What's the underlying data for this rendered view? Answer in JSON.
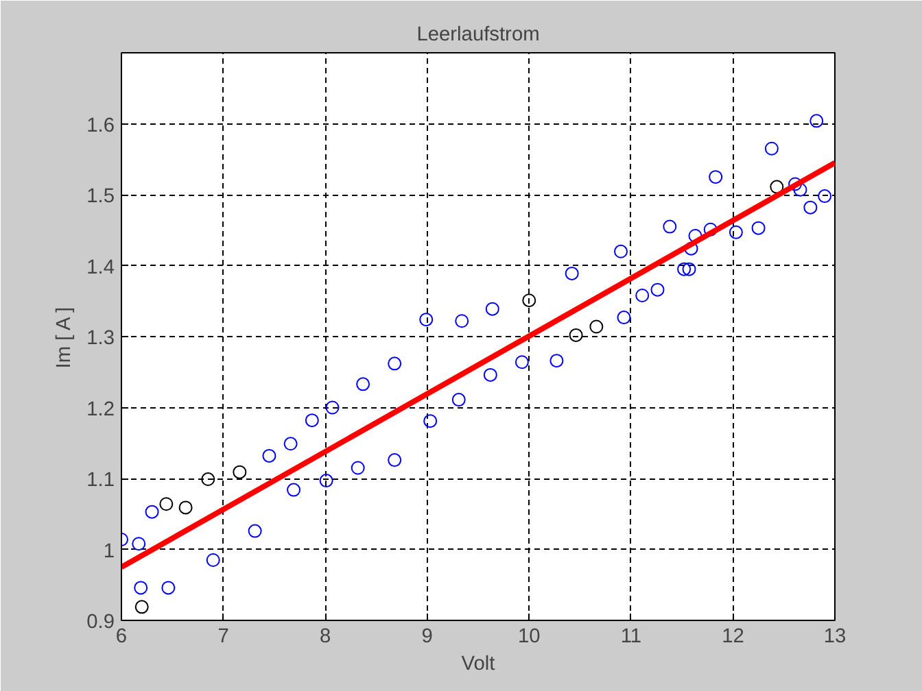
{
  "chart_data": {
    "type": "scatter",
    "title": "Leerlaufstrom",
    "xlabel": "Volt",
    "ylabel": "Im [ A ]",
    "xlim": [
      6,
      13
    ],
    "ylim": [
      0.9,
      1.7
    ],
    "xticks": [
      6,
      7,
      8,
      9,
      10,
      11,
      12,
      13
    ],
    "yticks": [
      0.9,
      1,
      1.1,
      1.2,
      1.3,
      1.4,
      1.5,
      1.6
    ],
    "grid": true,
    "series": [
      {
        "color": "#0000ff",
        "marker": "circle",
        "x": [
          6.0,
          6.17,
          6.19,
          6.3,
          6.46,
          6.9,
          7.31,
          7.45,
          7.66,
          7.69,
          7.87,
          8.01,
          8.07,
          8.32,
          8.37,
          8.68,
          8.68,
          8.99,
          9.03,
          9.31,
          9.34,
          9.62,
          9.64,
          9.93,
          10.27,
          10.42,
          10.9,
          10.93,
          11.11,
          11.26,
          11.38,
          11.52,
          11.57,
          11.59,
          11.63,
          11.78,
          11.83,
          12.03,
          12.25,
          12.38,
          12.61,
          12.66,
          12.76,
          12.82,
          12.9
        ],
        "values": [
          1.014,
          1.008,
          0.946,
          1.053,
          0.946,
          0.985,
          1.026,
          1.132,
          1.149,
          1.084,
          1.182,
          1.097,
          1.2,
          1.115,
          1.233,
          1.126,
          1.262,
          1.324,
          1.181,
          1.211,
          1.322,
          1.246,
          1.339,
          1.264,
          1.266,
          1.389,
          1.42,
          1.327,
          1.358,
          1.366,
          1.455,
          1.395,
          1.395,
          1.424,
          1.442,
          1.451,
          1.525,
          1.447,
          1.453,
          1.565,
          1.515,
          1.507,
          1.482,
          1.604,
          1.498
        ]
      },
      {
        "color": "#000000",
        "marker": "circle",
        "x": [
          6.2,
          6.44,
          6.63,
          6.85,
          7.16,
          10.0,
          10.46,
          10.66,
          12.43
        ],
        "values": [
          0.919,
          1.064,
          1.059,
          1.099,
          1.109,
          1.351,
          1.302,
          1.314,
          1.511
        ]
      },
      {
        "type": "line",
        "color": "#ff0000",
        "marker": "none",
        "x": [
          6,
          13
        ],
        "values": [
          0.975,
          1.545
        ]
      }
    ]
  }
}
